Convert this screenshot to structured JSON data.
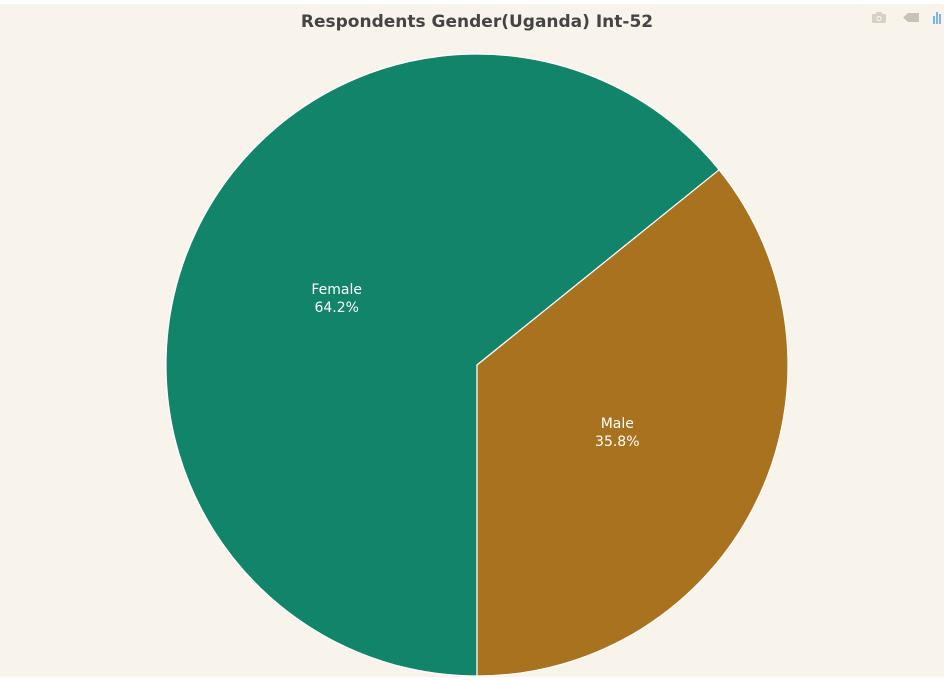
{
  "chart_data": {
    "type": "pie",
    "title": "Respondents Gender(Uganda) Int-52",
    "categories": [
      "Female",
      "Male"
    ],
    "values": [
      64.2,
      35.8
    ],
    "labels": [
      "64.2%",
      "35.8%"
    ],
    "colors": [
      "#12846a",
      "#a8721e"
    ],
    "direction": "clockwise",
    "start_slice_from": "bottom"
  },
  "toolbar": {
    "icons": [
      "camera-icon",
      "pan-icon",
      "plotly-logo-icon"
    ]
  },
  "colors": {
    "background": "#f8f4eb",
    "title": "#444444",
    "slice_border": "#ffffff",
    "label_text": "#ffffff"
  }
}
